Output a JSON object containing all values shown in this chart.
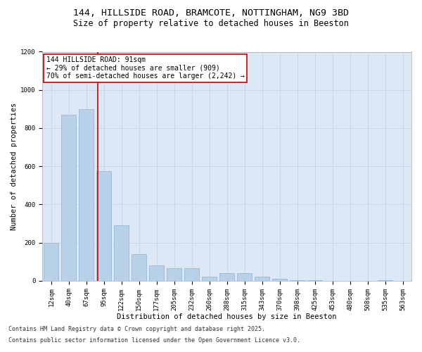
{
  "title_line1": "144, HILLSIDE ROAD, BRAMCOTE, NOTTINGHAM, NG9 3BD",
  "title_line2": "Size of property relative to detached houses in Beeston",
  "xlabel": "Distribution of detached houses by size in Beeston",
  "ylabel": "Number of detached properties",
  "categories": [
    "12sqm",
    "40sqm",
    "67sqm",
    "95sqm",
    "122sqm",
    "150sqm",
    "177sqm",
    "205sqm",
    "232sqm",
    "260sqm",
    "288sqm",
    "315sqm",
    "343sqm",
    "370sqm",
    "398sqm",
    "425sqm",
    "453sqm",
    "480sqm",
    "508sqm",
    "535sqm",
    "563sqm"
  ],
  "values": [
    200,
    870,
    900,
    575,
    290,
    140,
    80,
    65,
    65,
    22,
    40,
    40,
    22,
    10,
    5,
    5,
    0,
    0,
    0,
    5,
    0
  ],
  "bar_color": "#b8d0e8",
  "bar_edgecolor": "#8ab4d4",
  "grid_color": "#c8d4e4",
  "background_color": "#dce8f5",
  "vline_x": 2.65,
  "vline_color": "#cc0000",
  "annotation_text": "144 HILLSIDE ROAD: 91sqm\n← 29% of detached houses are smaller (909)\n70% of semi-detached houses are larger (2,242) →",
  "annotation_box_edgecolor": "#cc0000",
  "annotation_box_facecolor": "#ffffff",
  "ylim": [
    0,
    1200
  ],
  "yticks": [
    0,
    200,
    400,
    600,
    800,
    1000,
    1200
  ],
  "footer_line1": "Contains HM Land Registry data © Crown copyright and database right 2025.",
  "footer_line2": "Contains public sector information licensed under the Open Government Licence v3.0.",
  "title_fontsize": 9.5,
  "subtitle_fontsize": 8.5,
  "axis_label_fontsize": 7.5,
  "tick_fontsize": 6.5,
  "annotation_fontsize": 7.0,
  "footer_fontsize": 6.0
}
